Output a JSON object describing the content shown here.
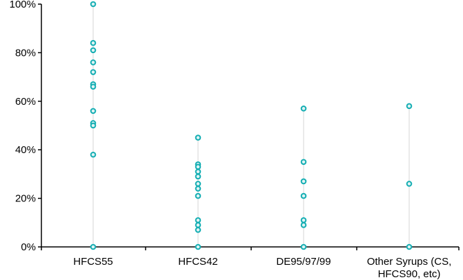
{
  "chart_data": {
    "type": "scatter",
    "title": "",
    "xlabel": "",
    "ylabel": "",
    "ylim": [
      0,
      100
    ],
    "yticks": [
      "0%",
      "20%",
      "40%",
      "60%",
      "80%",
      "100%"
    ],
    "grid": false,
    "legend": "none",
    "categories": [
      [
        "HFCS55"
      ],
      [
        "HFCS42"
      ],
      [
        "DE95/97/99"
      ],
      [
        "Other Syrups (CS,",
        "HFCS90, etc)"
      ]
    ],
    "series": [
      {
        "values": [
          [
            100,
            84,
            81,
            76,
            72,
            67,
            66,
            56,
            51,
            50,
            38,
            0
          ],
          [
            45,
            34,
            33,
            31,
            29,
            26,
            24,
            21,
            11,
            9,
            7,
            0
          ],
          [
            57,
            35,
            27,
            21,
            11,
            9,
            0
          ],
          [
            58,
            26,
            0
          ]
        ]
      }
    ],
    "colors": {
      "marker_stroke": "#14aeb3",
      "marker_fill": "#dff3f3",
      "stem": "#d4d4d4",
      "axis": "#000000"
    }
  }
}
